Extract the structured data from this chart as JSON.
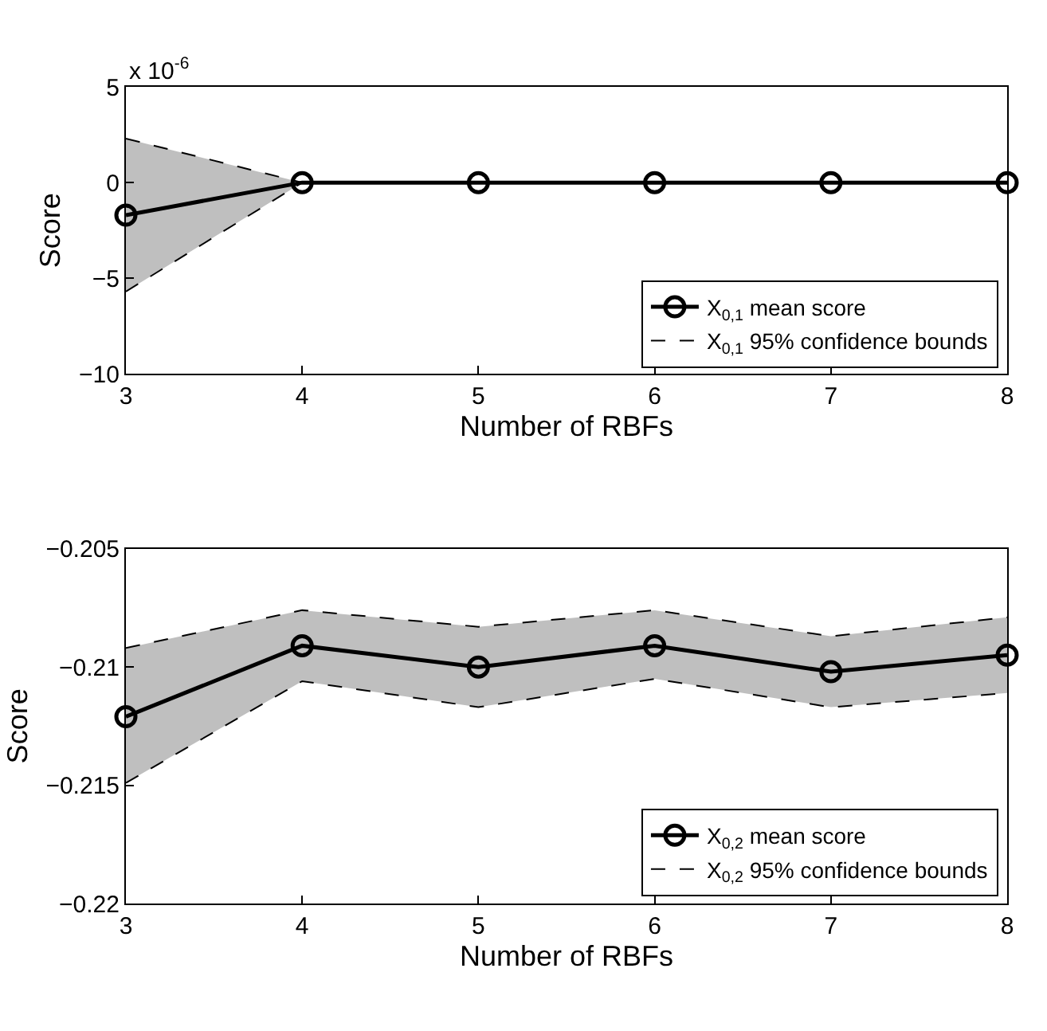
{
  "chart_data": [
    {
      "type": "line",
      "xlabel": "Number of RBFs",
      "ylabel": "Score",
      "x": [
        3,
        4,
        5,
        6,
        7,
        8
      ],
      "series": [
        {
          "name": "X$_{0,1}$ mean score",
          "color": "#000000",
          "marker": "circle",
          "line_style": "solid",
          "values": [
            -1.7,
            0,
            0,
            0,
            0,
            0
          ],
          "lower": [
            -5.7,
            0,
            0,
            0,
            0,
            0
          ],
          "upper": [
            2.3,
            0,
            0,
            0,
            0,
            0
          ]
        },
        {
          "name": "X$_{0,1}$ 95% confidence bounds",
          "color": "#000000",
          "line_style": "dashed",
          "values": [
            2.3,
            0,
            0,
            0,
            0,
            0
          ]
        },
        {
          "color": "#000000",
          "line_style": "dashed",
          "values": [
            -5.7,
            0,
            0,
            0,
            0,
            0
          ]
        }
      ],
      "xlim": [
        3,
        8
      ],
      "xticks": [
        3,
        4,
        5,
        6,
        7,
        8
      ],
      "ylim": [
        -10,
        5
      ],
      "yticks": [
        {
          "value": -10,
          "label": "−10"
        },
        {
          "value": -5,
          "label": "−5"
        },
        0,
        5
      ],
      "annotations": [
        "x 10$^{-6}$"
      ],
      "legend": "bottom right"
    },
    {
      "type": "line",
      "xlabel": "Number of RBFs",
      "ylabel": "Score",
      "x": [
        3,
        4,
        5,
        6,
        7,
        8
      ],
      "series": [
        {
          "name": "X$_{0,2}$ mean score",
          "color": "#000000",
          "marker": "circle",
          "line_style": "solid",
          "values": [
            -0.2121,
            -0.2091,
            -0.21,
            -0.2091,
            -0.2102,
            -0.2095
          ],
          "lower": [
            -0.2149,
            -0.2106,
            -0.2117,
            -0.2105,
            -0.2117,
            -0.2111
          ],
          "upper": [
            -0.2092,
            -0.2076,
            -0.2083,
            -0.2076,
            -0.2087,
            -0.2079
          ]
        },
        {
          "name": "X$_{0,2}$ 95% confidence bounds",
          "color": "#000000",
          "line_style": "dashed",
          "values": [
            -0.2092,
            -0.2076,
            -0.2083,
            -0.2076,
            -0.2087,
            -0.2079
          ]
        },
        {
          "color": "#000000",
          "line_style": "dashed",
          "values": [
            -0.2149,
            -0.2106,
            -0.2117,
            -0.2105,
            -0.2117,
            -0.2111
          ]
        }
      ],
      "xlim": [
        3,
        8
      ],
      "xticks": [
        3,
        4,
        5,
        6,
        7,
        8
      ],
      "ylim": [
        -0.22,
        -0.205
      ],
      "yticks": [
        {
          "value": -0.22,
          "label": "−0.22"
        },
        {
          "value": -0.215,
          "label": "−0.215"
        },
        {
          "value": -0.21,
          "label": "−0.21"
        },
        {
          "value": -0.205,
          "label": "−0.205"
        }
      ],
      "legend": "bottom right"
    }
  ]
}
